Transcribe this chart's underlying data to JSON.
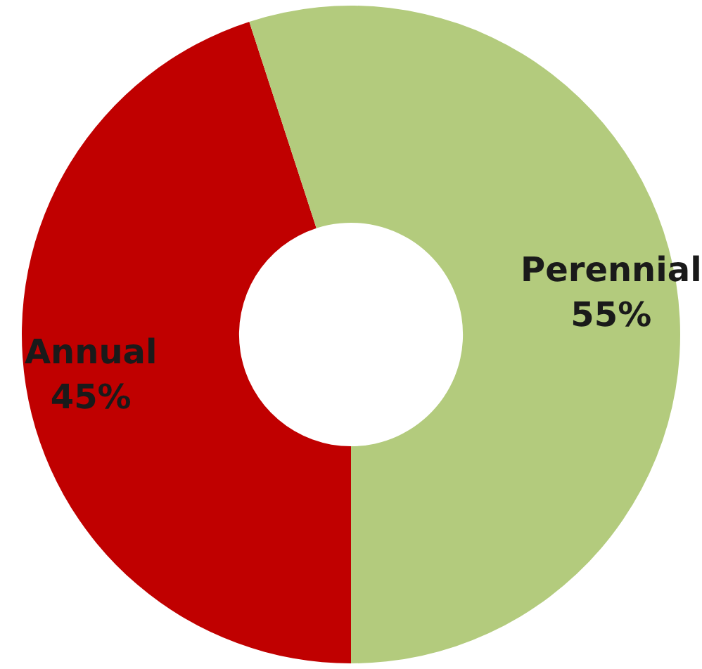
{
  "chart_data": {
    "type": "donut",
    "categories": [
      "Annual",
      "Perennial"
    ],
    "values": [
      45,
      55
    ],
    "colors": [
      "#c00000",
      "#b3cb7d"
    ],
    "value_labels": [
      "45%",
      "55%"
    ],
    "legend": false
  }
}
